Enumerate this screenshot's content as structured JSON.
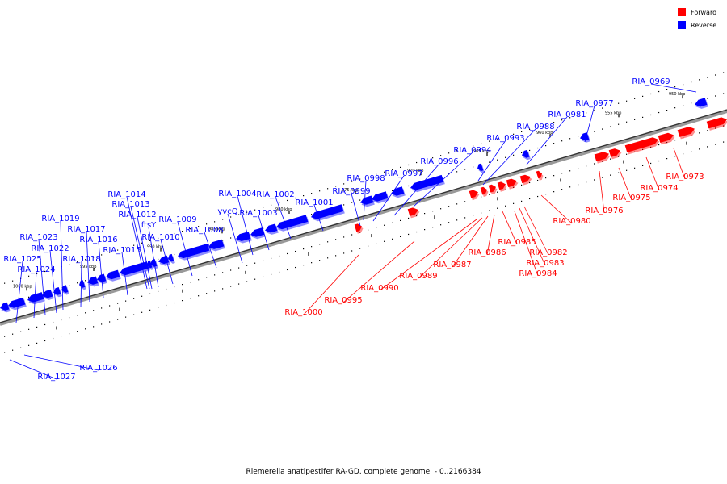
{
  "legend": {
    "forward": {
      "label": "Forward",
      "color": "#ff0000"
    },
    "reverse": {
      "label": "Reverse",
      "color": "#0000ff"
    }
  },
  "caption": "Riemerella anatipestifer RA-GD, complete genome. - 0..2166384",
  "kbp_ticks": [
    "950 kbp",
    "955 kbp",
    "960 kbp",
    "965 kbp",
    "970 kbp",
    "975 kbp",
    "980 kbp",
    "985 kbp",
    "990 kbp",
    "995 kbp",
    "1000 kbp"
  ],
  "forward_genes": [
    "RIA_0973",
    "RIA_0974",
    "RIA_0975",
    "RIA_0976",
    "RIA_0980",
    "RIA_0982",
    "RIA_0983",
    "RIA_0984",
    "RIA_0985",
    "RIA_0986",
    "RIA_0987",
    "RIA_0989",
    "RIA_0990",
    "RIA_0995",
    "RIA_1000"
  ],
  "reverse_genes": [
    "RIA_0969",
    "RIA_0977",
    "RIA_0981",
    "RIA_0988",
    "RIA_0993",
    "RIA_0994",
    "RIA_0996",
    "RIA_0997",
    "RIA_0998",
    "RIA_0999",
    "RIA_1001",
    "RIA_1002",
    "RIA_1003",
    "RIA_1004",
    "yvcQ",
    "RIA_1008",
    "RIA_1009",
    "RIA_1010",
    "ftsY",
    "RIA_1012",
    "RIA_1013",
    "RIA_1014",
    "RIA_1015",
    "RIA_1016",
    "RIA_1017",
    "RIA_1018",
    "RIA_1019",
    "RIA_1022",
    "RIA_1023",
    "RIA_1024",
    "RIA_1025",
    "RIA_1026",
    "RIA_1027"
  ]
}
